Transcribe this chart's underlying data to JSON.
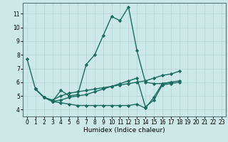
{
  "xlabel": "Humidex (Indice chaleur)",
  "ylabel": "",
  "bg_color": "#cce8e8",
  "line_color": "#1a6b60",
  "grid_color": "#b8d8d8",
  "xlim": [
    -0.5,
    23.5
  ],
  "ylim": [
    3.5,
    11.8
  ],
  "yticks": [
    4,
    5,
    6,
    7,
    8,
    9,
    10,
    11
  ],
  "xticks": [
    0,
    1,
    2,
    3,
    4,
    5,
    6,
    7,
    8,
    9,
    10,
    11,
    12,
    13,
    14,
    15,
    16,
    17,
    18,
    19,
    20,
    21,
    22,
    23
  ],
  "series": [
    {
      "x_start": 0,
      "y": [
        7.7,
        5.5,
        4.9,
        4.6,
        5.4,
        5.0,
        5.1,
        7.3,
        8.0,
        9.4,
        10.8,
        10.5,
        11.5,
        8.3,
        6.0,
        5.9,
        5.9,
        6.0
      ]
    },
    {
      "x_start": 1,
      "y": [
        5.5,
        4.9,
        4.7,
        5.0,
        5.2,
        5.3,
        5.4,
        5.5,
        5.6,
        5.7,
        5.8,
        5.9,
        6.0,
        6.1,
        6.3,
        6.5,
        6.6,
        6.8
      ]
    },
    {
      "x_start": 1,
      "y": [
        5.5,
        4.9,
        4.6,
        4.7,
        4.9,
        5.0,
        5.1,
        5.3,
        5.5,
        5.7,
        5.9,
        6.1,
        6.3,
        4.2,
        4.7,
        5.8,
        5.9,
        6.0
      ]
    },
    {
      "x_start": 1,
      "y": [
        5.5,
        4.9,
        4.6,
        4.5,
        4.4,
        4.3,
        4.3,
        4.3,
        4.3,
        4.3,
        4.3,
        4.3,
        4.4,
        4.1,
        4.9,
        5.9,
        6.0,
        6.1
      ]
    }
  ],
  "marker": "D",
  "markersize": 2.2,
  "linewidth": 1.0,
  "xlabel_fontsize": 6.5,
  "tick_fontsize": 5.5
}
